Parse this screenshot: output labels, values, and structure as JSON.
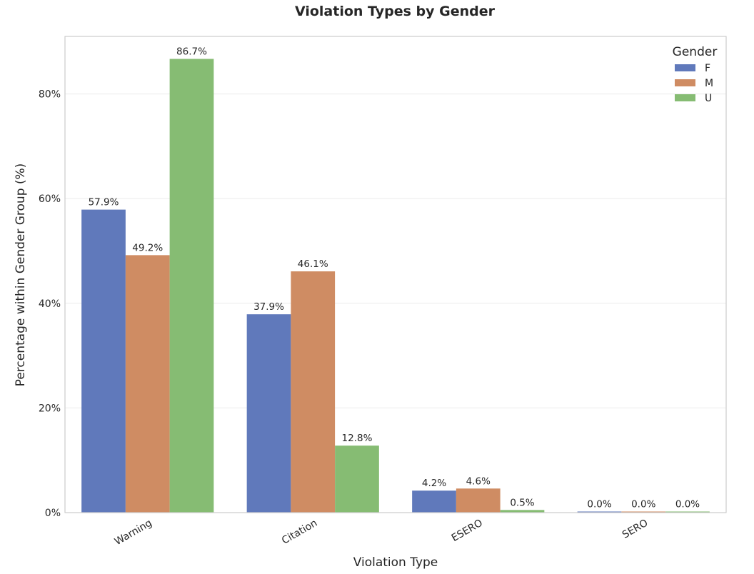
{
  "chart_data": {
    "type": "bar",
    "title": "Violation Types by Gender",
    "xlabel": "Violation Type",
    "ylabel": "Percentage within Gender Group (%)",
    "categories": [
      "Warning",
      "Citation",
      "ESERO",
      "SERO"
    ],
    "series": [
      {
        "name": "F",
        "values": [
          57.9,
          37.9,
          4.2,
          0.0
        ],
        "labels": [
          "57.9%",
          "37.9%",
          "4.2%",
          "0.0%"
        ],
        "color": "#6079bb"
      },
      {
        "name": "M",
        "values": [
          49.2,
          46.1,
          4.6,
          0.0
        ],
        "labels": [
          "49.2%",
          "46.1%",
          "4.6%",
          "0.0%"
        ],
        "color": "#cf8c63"
      },
      {
        "name": "U",
        "values": [
          86.7,
          12.8,
          0.5,
          0.0
        ],
        "labels": [
          "86.7%",
          "12.8%",
          "0.5%",
          "0.0%"
        ],
        "color": "#86bc73"
      }
    ],
    "ylim": [
      0,
      91
    ],
    "yticks": [
      0,
      20,
      40,
      60,
      80
    ],
    "ytick_labels": [
      "0%",
      "20%",
      "40%",
      "60%",
      "80%"
    ],
    "grid": true,
    "legend": {
      "title": "Gender",
      "placement": "top-right"
    }
  }
}
